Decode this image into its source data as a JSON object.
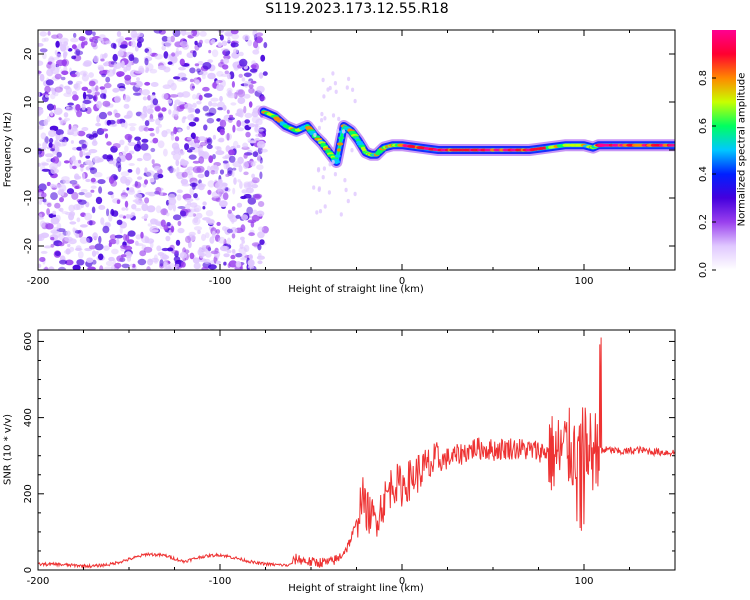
{
  "title": "S119.2023.173.12.55.R18",
  "colors": {
    "snr_line": "#ee3333",
    "colormap": [
      "#ffffff",
      "#e0c8ff",
      "#9a40ee",
      "#4400dd",
      "#0020ff",
      "#00c8ff",
      "#00ff60",
      "#c8ff00",
      "#ff8800",
      "#ff0030",
      "#ff0090"
    ]
  },
  "chart_data": [
    {
      "type": "heatmap",
      "xlabel": "Height of straight line (km)",
      "ylabel": "Frequency (Hz)",
      "xlim": [
        -200,
        150
      ],
      "ylim": [
        -25,
        25
      ],
      "xticks": [
        -200,
        -100,
        0,
        100
      ],
      "yticks": [
        -20,
        -10,
        0,
        10,
        20
      ],
      "colorbar": {
        "label": "Normalized spectral amplitude",
        "range": [
          0,
          1
        ],
        "ticks": [
          0.0,
          0.2,
          0.4,
          0.6,
          0.8
        ]
      },
      "noise_region_x": [
        -200,
        -75
      ],
      "ridge": {
        "x": [
          -76,
          -70,
          -64,
          -58,
          -52,
          -48,
          -44,
          -40,
          -36,
          -32,
          -28,
          -24,
          -20,
          -17,
          -14,
          -10,
          -5,
          0,
          10,
          20,
          30,
          40,
          50,
          60,
          70,
          80,
          90,
          100,
          105,
          108,
          110,
          120,
          130,
          140,
          150
        ],
        "freq": [
          8,
          7,
          5,
          4,
          5,
          3,
          1.5,
          -0.5,
          -2.5,
          5,
          4,
          2,
          -0.5,
          -1,
          -1,
          0.5,
          1,
          1,
          0.5,
          0,
          0,
          0,
          0,
          0,
          0,
          0.5,
          1,
          1,
          0.5,
          1,
          1,
          1,
          1,
          1,
          1
        ]
      }
    },
    {
      "type": "line",
      "xlabel": "Height of straight line (km)",
      "ylabel": "SNR (10 * v/v)",
      "xlim": [
        -200,
        150
      ],
      "ylim": [
        0,
        630
      ],
      "xticks": [
        -200,
        -100,
        0,
        100
      ],
      "yticks": [
        0,
        200,
        400,
        600
      ],
      "series": [
        {
          "x": [
            -200,
            -190,
            -180,
            -170,
            -160,
            -150,
            -140,
            -130,
            -120,
            -110,
            -100,
            -90,
            -80,
            -70,
            -62,
            -58,
            -50,
            -40,
            -35,
            -30,
            -25,
            -22,
            -20,
            -15,
            -10,
            -5,
            0,
            10,
            20,
            30,
            40,
            50,
            60,
            70,
            80,
            85,
            90,
            95,
            100,
            105,
            108,
            110,
            115,
            120,
            130,
            140,
            150
          ],
          "values": [
            15,
            15,
            12,
            10,
            15,
            28,
            42,
            38,
            22,
            35,
            40,
            30,
            18,
            14,
            12,
            30,
            20,
            20,
            30,
            60,
            120,
            200,
            160,
            130,
            180,
            230,
            220,
            260,
            285,
            300,
            320,
            315,
            320,
            315,
            310,
            300,
            320,
            310,
            320,
            310,
            330,
            315,
            315,
            310,
            315,
            310,
            308
          ]
        }
      ]
    }
  ]
}
